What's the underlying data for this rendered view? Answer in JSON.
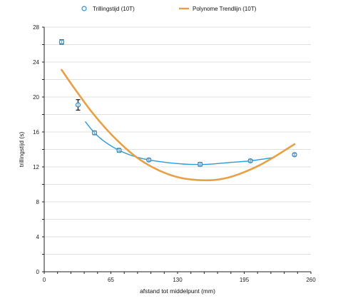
{
  "chart_data": {
    "type": "scatter",
    "title": "",
    "xlabel": "afstand tot middelpunt (mm)",
    "ylabel": "trillingstijd (s)",
    "xlim": [
      0,
      260
    ],
    "ylim": [
      0,
      28
    ],
    "xticks": [
      0,
      65,
      130,
      195,
      260
    ],
    "yticks": [
      0,
      4,
      8,
      12,
      16,
      20,
      24,
      28
    ],
    "grid": true,
    "legend_position": "top",
    "series": [
      {
        "name": "Trillingstijd (10T)",
        "kind": "scatter",
        "color": "#2a8fd0",
        "x": [
          17,
          33,
          49,
          73,
          102,
          152,
          201,
          244
        ],
        "y": [
          26.3,
          19.1,
          15.9,
          13.9,
          12.8,
          12.3,
          12.7,
          13.4
        ],
        "err": [
          0.25,
          0.6,
          0.2,
          0.2,
          0.15,
          0.2,
          0.15,
          0.15
        ]
      },
      {
        "name": "",
        "kind": "smooth_line",
        "color": "#2a9ad8",
        "x": [
          40,
          49,
          60,
          73,
          88,
          102,
          120,
          140,
          160,
          180,
          201,
          225
        ],
        "y": [
          17.2,
          15.9,
          14.8,
          13.9,
          13.2,
          12.8,
          12.5,
          12.3,
          12.3,
          12.5,
          12.7,
          13.1
        ]
      },
      {
        "name": "Polynome Trendlijn (10T)",
        "kind": "trendline",
        "color": "#e8a044",
        "x": [
          17,
          30,
          45,
          60,
          75,
          90,
          105,
          120,
          135,
          150,
          165,
          180,
          195,
          210,
          225,
          244
        ],
        "y": [
          23.1,
          20.9,
          18.5,
          16.4,
          14.6,
          13.1,
          12.0,
          11.2,
          10.7,
          10.5,
          10.5,
          10.8,
          11.4,
          12.2,
          13.2,
          14.6
        ]
      }
    ]
  }
}
